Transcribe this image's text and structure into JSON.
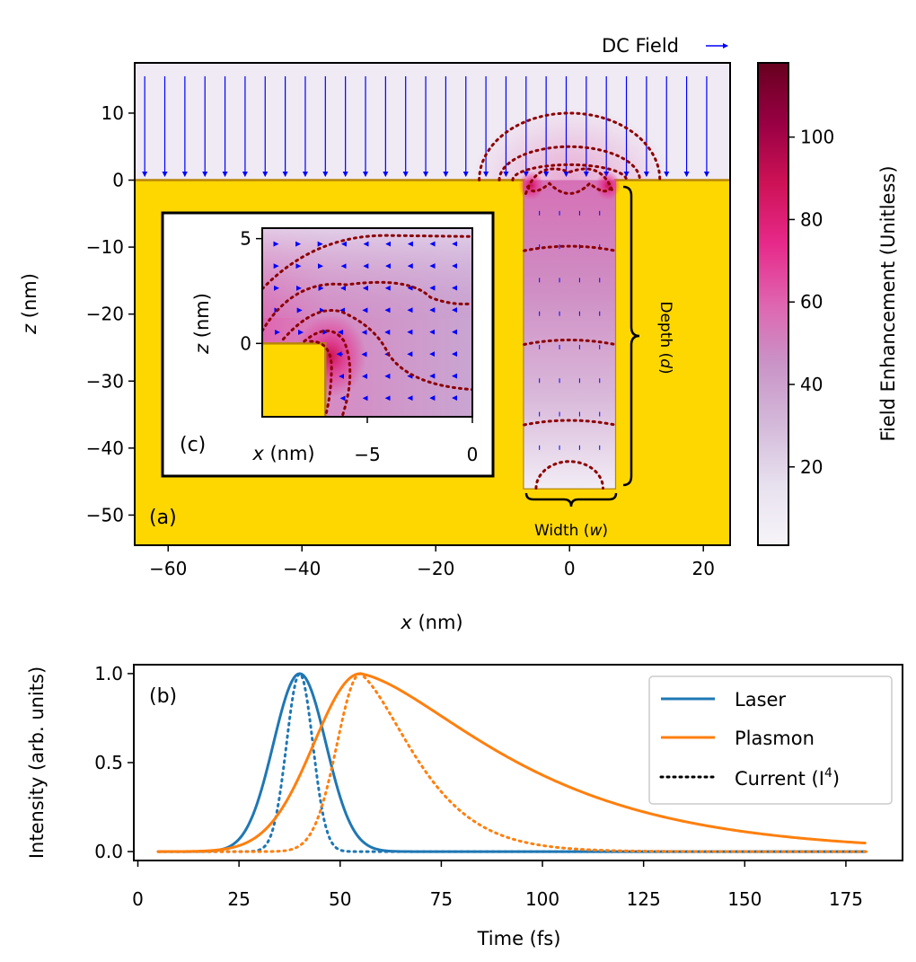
{
  "figure": {
    "dc_field_label": "DC Field",
    "colorbar": {
      "label": "Field Enhancement (Unitless)",
      "ticks": [
        20,
        40,
        60,
        80,
        100
      ],
      "range": [
        1,
        118
      ],
      "colors": [
        "#f7f4f9",
        "#e7e1ef",
        "#d4b9da",
        "#c994c7",
        "#df65b0",
        "#e7298a",
        "#ce1256",
        "#980043",
        "#67001f"
      ]
    },
    "gold_color": "#ffd700",
    "groove_edge_color": "#b8860b",
    "arrow_color": "#0000ff",
    "contour_color": "#8b0000"
  },
  "chart_data": [
    {
      "id": "a",
      "type": "heatmap",
      "panel_label": "(a)",
      "xlabel_var": "x",
      "xlabel_unit": " (nm)",
      "ylabel_var": "z",
      "ylabel_unit": " (nm)",
      "xlim": [
        -65,
        24
      ],
      "ylim": [
        -54.5,
        17.5
      ],
      "xticks": [
        -60,
        -40,
        -20,
        0,
        20
      ],
      "yticks": [
        10,
        0,
        -10,
        -20,
        -30,
        -40,
        -50
      ],
      "groove": {
        "x_range": [
          -6.8,
          6.8
        ],
        "z_range": [
          -46,
          0
        ]
      },
      "annotations": {
        "width_label": "Width (",
        "width_var": "w",
        "width_close": ")",
        "depth_label": "Depth (",
        "depth_var": "d",
        "depth_close": ")"
      },
      "contour_levels_ellipses": [
        {
          "cx": 0,
          "cz": 0,
          "rx": 13.5,
          "rz": 10
        },
        {
          "cx": 0,
          "cz": 0,
          "rx": 10.5,
          "rz": 5
        },
        {
          "cx": 0,
          "cz": 0,
          "rx": 8.5,
          "rz": 2.3
        }
      ]
    },
    {
      "id": "c",
      "type": "heatmap",
      "panel_label": "(c)",
      "xlabel_var": "x",
      "xlabel_unit": " (nm)",
      "ylabel_var": "z",
      "ylabel_unit": " (nm)",
      "xlim": [
        -10,
        0
      ],
      "ylim": [
        -3.5,
        5.5
      ],
      "xticks": [
        -5,
        0
      ],
      "yticks": [
        5,
        0
      ],
      "gold_block": {
        "x_max": -7,
        "z_max": 0
      }
    },
    {
      "id": "b",
      "type": "line",
      "panel_label": "(b)",
      "xlabel": "Time (fs)",
      "ylabel": "Intensity (arb. units)",
      "xlim": [
        -1,
        189
      ],
      "ylim": [
        -0.05,
        1.05
      ],
      "xticks": [
        0,
        25,
        50,
        75,
        100,
        125,
        150,
        175
      ],
      "yticks": [
        0.0,
        0.5,
        1.0
      ],
      "ytick_labels": [
        "0.0",
        "0.5",
        "1.0"
      ],
      "x_range": [
        5,
        180
      ],
      "legend": [
        {
          "label": "Laser",
          "style": "solid",
          "color": "#1f77b4"
        },
        {
          "label": "Plasmon",
          "style": "solid",
          "color": "#ff7f0e"
        },
        {
          "label": "Current (I",
          "sup": "4",
          "close": ")",
          "style": "dotted",
          "color": "#000000"
        }
      ],
      "series": [
        {
          "name": "Laser",
          "color": "#1f77b4",
          "model": "gaussian",
          "peak": 40,
          "sigma": 6.5
        },
        {
          "name": "Plasmon",
          "color": "#ff7f0e",
          "model": "asymmetric",
          "peak": 55,
          "rise_sigma": 11.5,
          "decay_tau": 35
        }
      ]
    }
  ]
}
